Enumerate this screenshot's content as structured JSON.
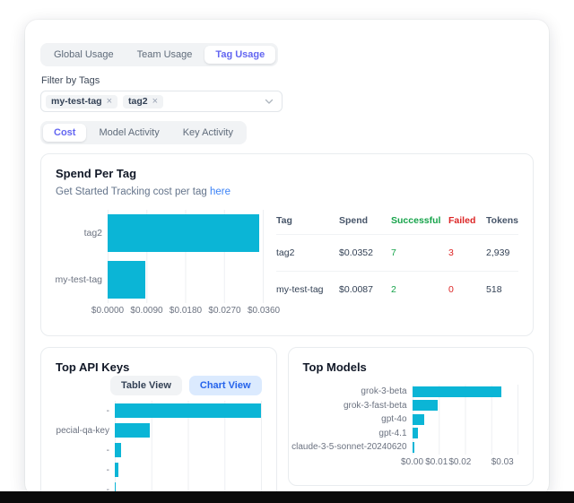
{
  "usage_tabs": {
    "items": [
      {
        "label": "Global Usage",
        "active": false
      },
      {
        "label": "Team Usage",
        "active": false
      },
      {
        "label": "Tag Usage",
        "active": true
      }
    ]
  },
  "filter": {
    "label": "Filter by Tags",
    "tags": [
      {
        "name": "my-test-tag"
      },
      {
        "name": "tag2"
      }
    ],
    "remove_icon": "×"
  },
  "view_tabs": {
    "items": [
      {
        "label": "Cost",
        "active": true
      },
      {
        "label": "Model Activity",
        "active": false
      },
      {
        "label": "Key Activity",
        "active": false
      }
    ]
  },
  "spend_per_tag": {
    "title": "Spend Per Tag",
    "subtitle_prefix": "Get Started Tracking cost per tag",
    "subtitle_link": "here",
    "chart_data": {
      "type": "bar",
      "orientation": "horizontal",
      "categories": [
        "tag2",
        "my-test-tag"
      ],
      "values": [
        0.0352,
        0.0087
      ],
      "xmax": 0.036,
      "xticks": [
        "$0.0000",
        "$0.0090",
        "$0.0180",
        "$0.0270",
        "$0.0360"
      ],
      "grid": true,
      "bar_color": "#0bb5d6"
    },
    "table": {
      "headers": {
        "tag": "Tag",
        "spend": "Spend",
        "successful": "Successful",
        "failed": "Failed",
        "tokens": "Tokens"
      },
      "rows": [
        {
          "tag": "tag2",
          "spend": "$0.0352",
          "successful": "7",
          "failed": "3",
          "tokens": "2,939"
        },
        {
          "tag": "my-test-tag",
          "spend": "$0.0087",
          "successful": "2",
          "failed": "0",
          "tokens": "518"
        }
      ]
    }
  },
  "top_api_keys": {
    "title": "Top API Keys",
    "buttons": [
      {
        "label": "Table View",
        "active": false
      },
      {
        "label": "Chart View",
        "active": true
      }
    ],
    "chart_data": {
      "type": "bar",
      "orientation": "horizontal",
      "categories": [
        "-",
        "pecial-qa-key",
        "-",
        "-",
        "-"
      ],
      "values": [
        0.0352,
        0.0085,
        0.0016,
        0.0008,
        0.0001
      ],
      "xmax": 0.0352,
      "xticks": [],
      "grid": true,
      "bar_color": "#0bb5d6",
      "note": "x-axis labels clipped by card edge"
    }
  },
  "top_models": {
    "title": "Top Models",
    "chart_data": {
      "type": "bar",
      "orientation": "horizontal",
      "categories": [
        "grok-3-beta",
        "grok-3-fast-beta",
        "gpt-4o",
        "gpt-4.1",
        "claude-3-5-sonnet-20240620"
      ],
      "values": [
        0.0299,
        0.0085,
        0.004,
        0.0018,
        0.0007
      ],
      "xmax": 0.0352,
      "xticks": [
        "$0.00",
        "$0.01",
        "$0.02",
        "$0.03"
      ],
      "grid": true,
      "bar_color": "#0bb5d6"
    }
  },
  "colors": {
    "accent_bar": "#0bb5d6",
    "tab_active": "#6366f1",
    "link": "#3b82f6",
    "success": "#16a34a",
    "danger": "#dc2626",
    "chart_view_bg": "#dbeafe",
    "chart_view_text": "#2563eb"
  }
}
